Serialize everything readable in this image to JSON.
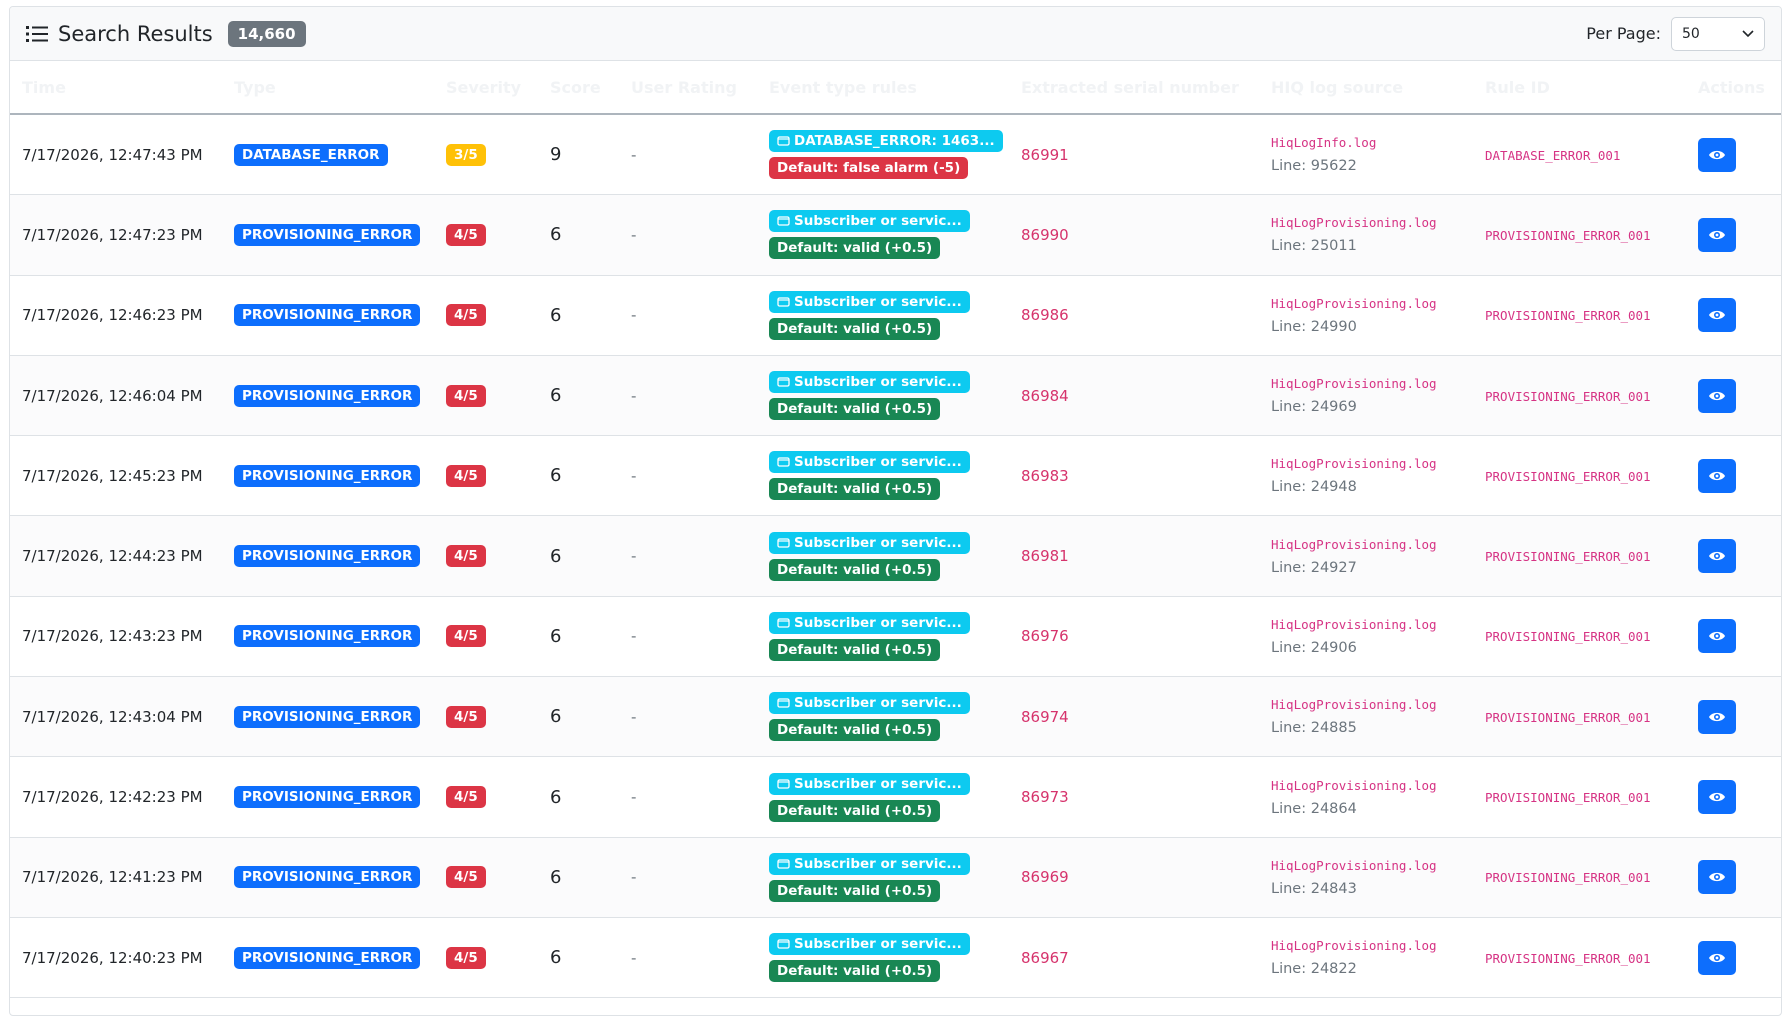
{
  "header": {
    "title": "Search Results",
    "count": "14,660",
    "per_page_label": "Per Page:",
    "per_page_value": "50"
  },
  "table": {
    "columns": [
      "Time",
      "Type",
      "Severity",
      "Score",
      "User Rating",
      "Event type rules",
      "Extracted serial number",
      "HIQ log source",
      "Rule ID",
      "Actions"
    ],
    "rows": [
      {
        "time": "7/17/2026, 12:47:43 PM",
        "type": "DATABASE_ERROR",
        "severity": "3/5",
        "severity_color": "#ffc107",
        "score": "9",
        "rating": "-",
        "rules": [
          {
            "text": "DATABASE_ERROR: 1463...",
            "color": "#0dcaf0"
          },
          {
            "text": "Default: false alarm (-5)",
            "color": "#dc3545"
          }
        ],
        "serial": "86991",
        "log": "HiqLogInfo.log",
        "line": "Line: 95622",
        "rule_id": "DATABASE_ERROR_001"
      },
      {
        "time": "7/17/2026, 12:47:23 PM",
        "type": "PROVISIONING_ERROR",
        "severity": "4/5",
        "severity_color": "#dc3545",
        "score": "6",
        "rating": "-",
        "rules": [
          {
            "text": "Subscriber or servic...",
            "color": "#0dcaf0"
          },
          {
            "text": "Default: valid (+0.5)",
            "color": "#198754"
          }
        ],
        "serial": "86990",
        "log": "HiqLogProvisioning.log",
        "line": "Line: 25011",
        "rule_id": "PROVISIONING_ERROR_001"
      },
      {
        "time": "7/17/2026, 12:46:23 PM",
        "type": "PROVISIONING_ERROR",
        "severity": "4/5",
        "severity_color": "#dc3545",
        "score": "6",
        "rating": "-",
        "rules": [
          {
            "text": "Subscriber or servic...",
            "color": "#0dcaf0"
          },
          {
            "text": "Default: valid (+0.5)",
            "color": "#198754"
          }
        ],
        "serial": "86986",
        "log": "HiqLogProvisioning.log",
        "line": "Line: 24990",
        "rule_id": "PROVISIONING_ERROR_001"
      },
      {
        "time": "7/17/2026, 12:46:04 PM",
        "type": "PROVISIONING_ERROR",
        "severity": "4/5",
        "severity_color": "#dc3545",
        "score": "6",
        "rating": "-",
        "rules": [
          {
            "text": "Subscriber or servic...",
            "color": "#0dcaf0"
          },
          {
            "text": "Default: valid (+0.5)",
            "color": "#198754"
          }
        ],
        "serial": "86984",
        "log": "HiqLogProvisioning.log",
        "line": "Line: 24969",
        "rule_id": "PROVISIONING_ERROR_001"
      },
      {
        "time": "7/17/2026, 12:45:23 PM",
        "type": "PROVISIONING_ERROR",
        "severity": "4/5",
        "severity_color": "#dc3545",
        "score": "6",
        "rating": "-",
        "rules": [
          {
            "text": "Subscriber or servic...",
            "color": "#0dcaf0"
          },
          {
            "text": "Default: valid (+0.5)",
            "color": "#198754"
          }
        ],
        "serial": "86983",
        "log": "HiqLogProvisioning.log",
        "line": "Line: 24948",
        "rule_id": "PROVISIONING_ERROR_001"
      },
      {
        "time": "7/17/2026, 12:44:23 PM",
        "type": "PROVISIONING_ERROR",
        "severity": "4/5",
        "severity_color": "#dc3545",
        "score": "6",
        "rating": "-",
        "rules": [
          {
            "text": "Subscriber or servic...",
            "color": "#0dcaf0"
          },
          {
            "text": "Default: valid (+0.5)",
            "color": "#198754"
          }
        ],
        "serial": "86981",
        "log": "HiqLogProvisioning.log",
        "line": "Line: 24927",
        "rule_id": "PROVISIONING_ERROR_001"
      },
      {
        "time": "7/17/2026, 12:43:23 PM",
        "type": "PROVISIONING_ERROR",
        "severity": "4/5",
        "severity_color": "#dc3545",
        "score": "6",
        "rating": "-",
        "rules": [
          {
            "text": "Subscriber or servic...",
            "color": "#0dcaf0"
          },
          {
            "text": "Default: valid (+0.5)",
            "color": "#198754"
          }
        ],
        "serial": "86976",
        "log": "HiqLogProvisioning.log",
        "line": "Line: 24906",
        "rule_id": "PROVISIONING_ERROR_001"
      },
      {
        "time": "7/17/2026, 12:43:04 PM",
        "type": "PROVISIONING_ERROR",
        "severity": "4/5",
        "severity_color": "#dc3545",
        "score": "6",
        "rating": "-",
        "rules": [
          {
            "text": "Subscriber or servic...",
            "color": "#0dcaf0"
          },
          {
            "text": "Default: valid (+0.5)",
            "color": "#198754"
          }
        ],
        "serial": "86974",
        "log": "HiqLogProvisioning.log",
        "line": "Line: 24885",
        "rule_id": "PROVISIONING_ERROR_001"
      },
      {
        "time": "7/17/2026, 12:42:23 PM",
        "type": "PROVISIONING_ERROR",
        "severity": "4/5",
        "severity_color": "#dc3545",
        "score": "6",
        "rating": "-",
        "rules": [
          {
            "text": "Subscriber or servic...",
            "color": "#0dcaf0"
          },
          {
            "text": "Default: valid (+0.5)",
            "color": "#198754"
          }
        ],
        "serial": "86973",
        "log": "HiqLogProvisioning.log",
        "line": "Line: 24864",
        "rule_id": "PROVISIONING_ERROR_001"
      },
      {
        "time": "7/17/2026, 12:41:23 PM",
        "type": "PROVISIONING_ERROR",
        "severity": "4/5",
        "severity_color": "#dc3545",
        "score": "6",
        "rating": "-",
        "rules": [
          {
            "text": "Subscriber or servic...",
            "color": "#0dcaf0"
          },
          {
            "text": "Default: valid (+0.5)",
            "color": "#198754"
          }
        ],
        "serial": "86969",
        "log": "HiqLogProvisioning.log",
        "line": "Line: 24843",
        "rule_id": "PROVISIONING_ERROR_001"
      },
      {
        "time": "7/17/2026, 12:40:23 PM",
        "type": "PROVISIONING_ERROR",
        "severity": "4/5",
        "severity_color": "#dc3545",
        "score": "6",
        "rating": "-",
        "rules": [
          {
            "text": "Subscriber or servic...",
            "color": "#0dcaf0"
          },
          {
            "text": "Default: valid (+0.5)",
            "color": "#198754"
          }
        ],
        "serial": "86967",
        "log": "HiqLogProvisioning.log",
        "line": "Line: 24822",
        "rule_id": "PROVISIONING_ERROR_001"
      }
    ]
  }
}
